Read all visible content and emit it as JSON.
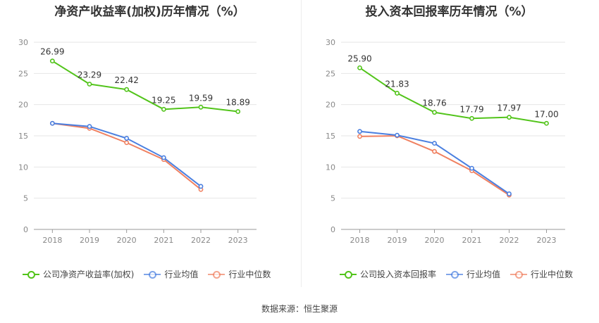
{
  "source_text": "数据来源：恒生聚源",
  "chart_data": [
    {
      "type": "line",
      "title": "净资产收益率(加权)历年情况（%）",
      "categories": [
        "2018",
        "2019",
        "2020",
        "2021",
        "2022",
        "2023"
      ],
      "ylim": [
        0,
        30
      ],
      "yticks": [
        0,
        5,
        10,
        15,
        20,
        25,
        30
      ],
      "series": [
        {
          "name": "公司净资产收益率(加权)",
          "color": "#52c41a",
          "values": [
            26.99,
            23.29,
            22.42,
            19.25,
            19.59,
            18.89
          ],
          "labels": [
            "26.99",
            "23.29",
            "22.42",
            "19.25",
            "19.59",
            "18.89"
          ]
        },
        {
          "name": "行业均值",
          "color": "#4a7fe0",
          "values": [
            17.0,
            16.5,
            14.6,
            11.5,
            6.9,
            null
          ]
        },
        {
          "name": "行业中位数",
          "color": "#f08060",
          "values": [
            17.0,
            16.2,
            13.9,
            11.2,
            6.4,
            null
          ]
        }
      ]
    },
    {
      "type": "line",
      "title": "投入资本回报率历年情况（%）",
      "categories": [
        "2018",
        "2019",
        "2020",
        "2021",
        "2022",
        "2023"
      ],
      "ylim": [
        0,
        30
      ],
      "yticks": [
        0,
        5,
        10,
        15,
        20,
        25,
        30
      ],
      "series": [
        {
          "name": "公司投入资本回报率",
          "color": "#52c41a",
          "values": [
            25.9,
            21.83,
            18.76,
            17.79,
            17.97,
            17.0
          ],
          "labels": [
            "25.90",
            "21.83",
            "18.76",
            "17.79",
            "17.97",
            "17.00"
          ]
        },
        {
          "name": "行业均值",
          "color": "#4a7fe0",
          "values": [
            15.7,
            15.1,
            13.8,
            9.8,
            5.7,
            null
          ]
        },
        {
          "name": "行业中位数",
          "color": "#f08060",
          "values": [
            14.9,
            15.0,
            12.5,
            9.4,
            5.5,
            null
          ]
        }
      ]
    }
  ]
}
